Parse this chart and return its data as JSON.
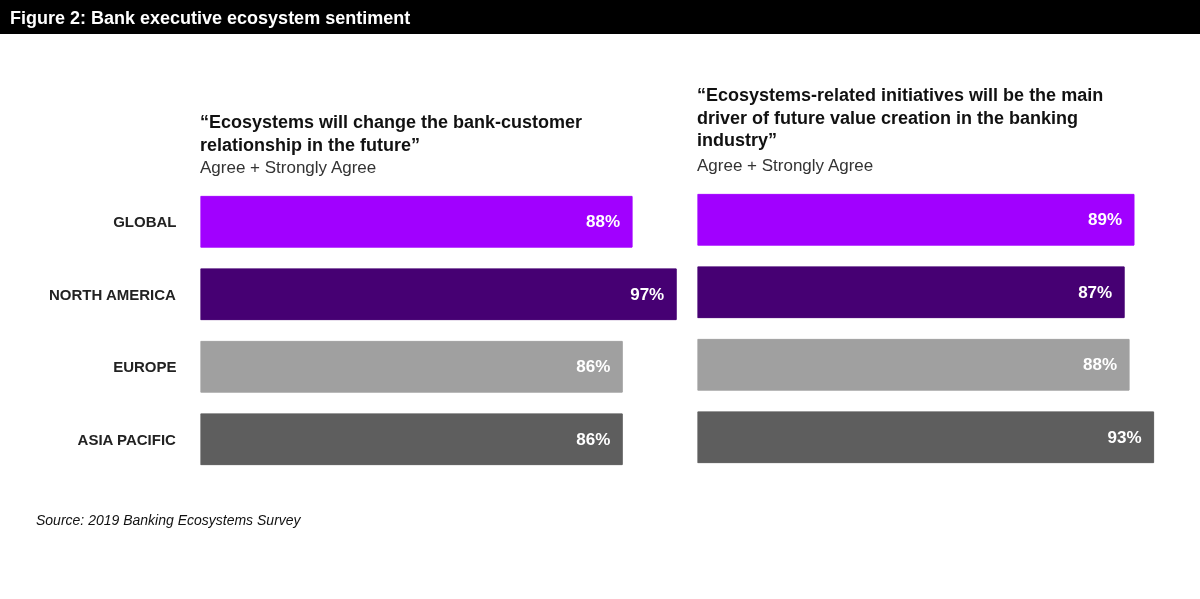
{
  "chart_data": [
    {
      "type": "bar",
      "orientation": "horizontal",
      "title": "“Ecosystems will change the bank-customer relationship in the future”",
      "subtitle": "Agree + Strongly Agree",
      "categories": [
        "GLOBAL",
        "NORTH AMERICA",
        "EUROPE",
        "ASIA PACIFIC"
      ],
      "values": [
        88,
        97,
        86,
        86
      ],
      "colors": [
        "#a100ff",
        "#460073",
        "#a0a0a0",
        "#5e5e5e"
      ],
      "value_labels": [
        "88%",
        "97%",
        "86%",
        "86%"
      ],
      "grid": false,
      "tick_labels": "y",
      "annotations": [
        "Figure 2: Bank executive ecosystem sentiment",
        "Source: 2019 Banking Ecosystems Survey"
      ]
    },
    {
      "type": "bar",
      "orientation": "horizontal",
      "title": "“Ecosystems-related initiatives will be the main driver of future value creation in the banking industry”",
      "subtitle": "Agree + Strongly Agree",
      "categories": [
        null,
        null,
        null,
        null
      ],
      "values": [
        89,
        87,
        88,
        93
      ],
      "colors": [
        "#a100ff",
        "#460073",
        "#a0a0a0",
        "#5e5e5e"
      ],
      "value_labels": [
        "89%",
        "87%",
        "88%",
        "93%"
      ],
      "grid": false,
      "tick_labels": false
    }
  ]
}
